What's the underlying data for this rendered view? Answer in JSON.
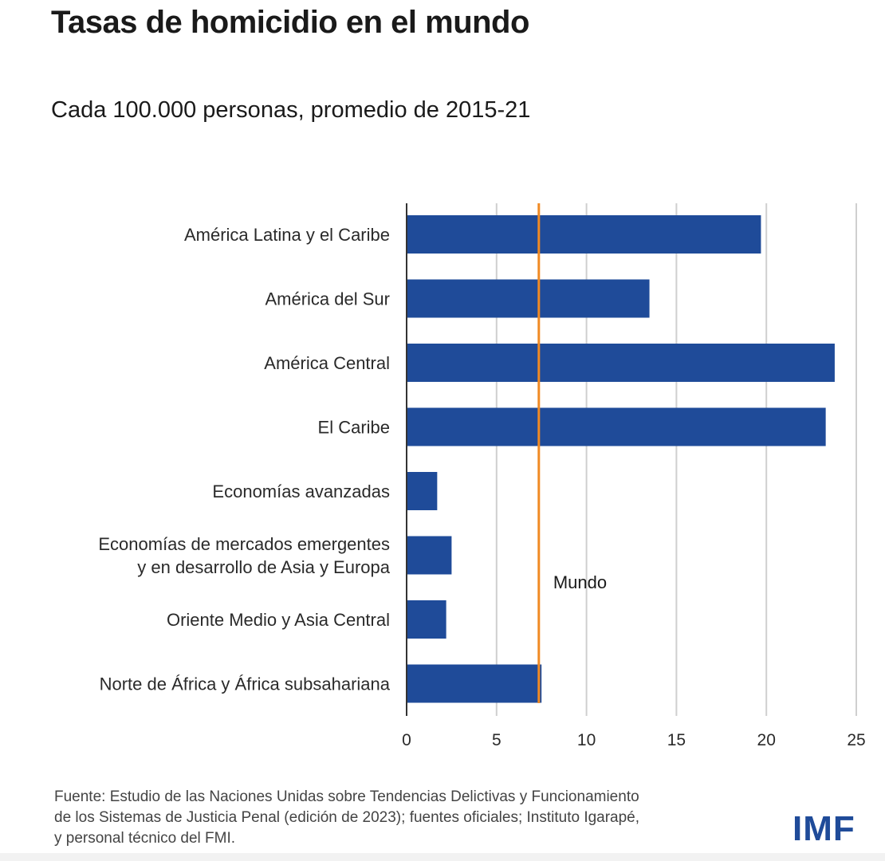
{
  "title": "Tasas de homicidio en el mundo",
  "subtitle": "Cada 100.000 personas, promedio de 2015-21",
  "source_lines": [
    "Fuente: Estudio de las Naciones Unidas sobre Tendencias Delictivas y Funcionamiento",
    "de los Sistemas de Justicia Penal (edición de 2023); fuentes oficiales; Instituto Igarapé,",
    "y personal técnico del FMI."
  ],
  "logo": "IMF",
  "colors": {
    "bar": "#1f4b99",
    "reference": "#f08a24",
    "grid": "#cfcfcf",
    "axis": "#333333"
  },
  "chart_data": {
    "type": "bar",
    "orientation": "horizontal",
    "categories": [
      [
        "América Latina y el Caribe"
      ],
      [
        "América del Sur"
      ],
      [
        "América Central"
      ],
      [
        "El Caribe"
      ],
      [
        "Economías avanzadas"
      ],
      [
        "Economías de mercados emergentes",
        "y en desarrollo de Asia y Europa"
      ],
      [
        "Oriente Medio y Asia Central"
      ],
      [
        "Norte de África y África subsahariana"
      ]
    ],
    "values": [
      19.7,
      13.5,
      23.8,
      23.3,
      1.7,
      2.5,
      2.2,
      7.5
    ],
    "xlim": [
      0,
      25
    ],
    "xticks": [
      0,
      5,
      10,
      15,
      20,
      25
    ],
    "grid": true,
    "reference_line": {
      "value": 7.35,
      "label": "Mundo"
    }
  }
}
